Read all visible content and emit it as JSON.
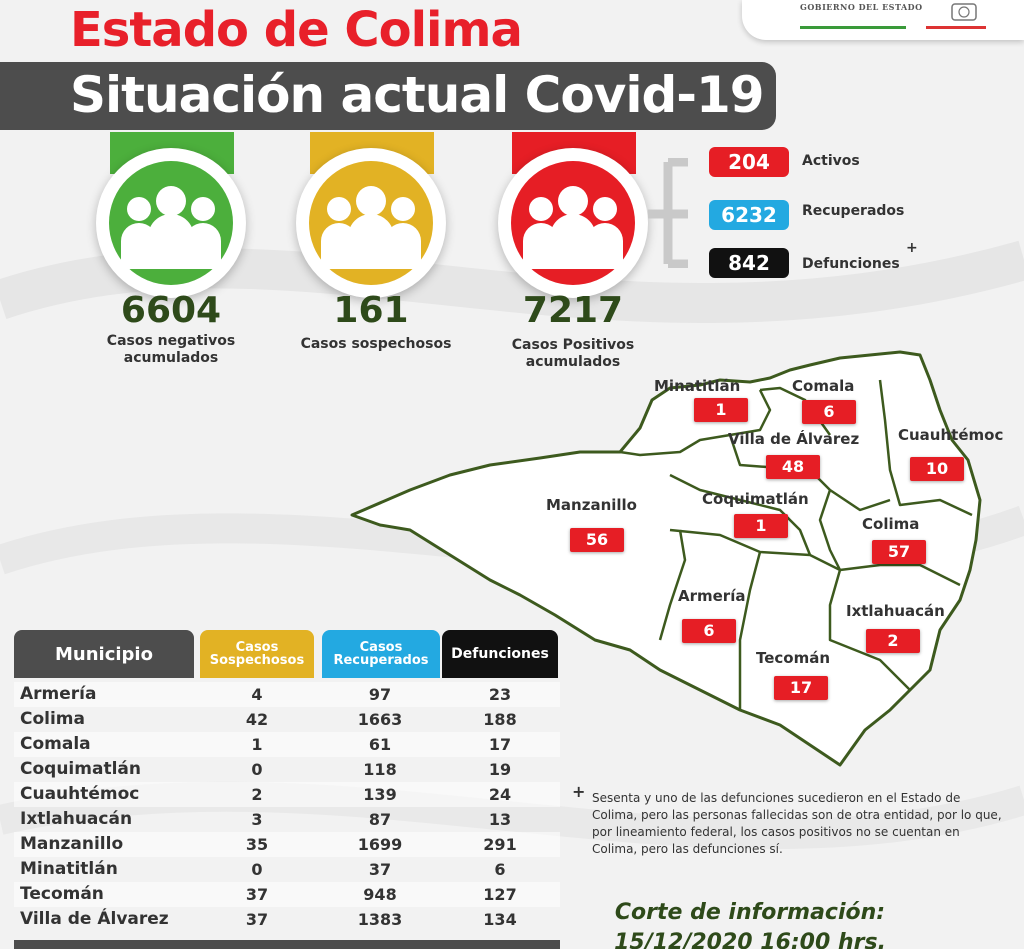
{
  "header": {
    "gov_text": "GOBIERNO DEL ESTADO",
    "title": "Estado de Colima",
    "subtitle": "Situación actual Covid-19"
  },
  "stats": [
    {
      "value": "6604",
      "label": "Casos negativos acumulados",
      "color": "#4caf3c"
    },
    {
      "value": "161",
      "label": "Casos sospechosos",
      "color": "#e2b224"
    },
    {
      "value": "7217",
      "label": "Casos Positivos acumulados",
      "color": "#e61e25"
    }
  ],
  "positivos_breakdown": [
    {
      "value": "204",
      "label": "Activos",
      "color": "#e61e25"
    },
    {
      "value": "6232",
      "label": "Recuperados",
      "color": "#23a9e1"
    },
    {
      "value": "842",
      "label": "Defunciones",
      "color": "#111111",
      "mark": "+"
    }
  ],
  "map": {
    "municipios": [
      {
        "name": "Minatitlán",
        "value": "1"
      },
      {
        "name": "Comala",
        "value": "6"
      },
      {
        "name": "Villa de Álvarez",
        "value": "48"
      },
      {
        "name": "Cuauhtémoc",
        "value": "10"
      },
      {
        "name": "Manzanillo",
        "value": "56"
      },
      {
        "name": "Coquimatlán",
        "value": "1"
      },
      {
        "name": "Colima",
        "value": "57"
      },
      {
        "name": "Armería",
        "value": "6"
      },
      {
        "name": "Ixtlahuacán",
        "value": "2"
      },
      {
        "name": "Tecomán",
        "value": "17"
      }
    ]
  },
  "table": {
    "headers": {
      "municipio": "Municipio",
      "sospechosos": "Casos Sospechosos",
      "recuperados": "Casos Recuperados",
      "defunciones": "Defunciones"
    },
    "header_colors": {
      "municipio": "#4d4d4d",
      "sospechosos": "#e2b224",
      "recuperados": "#23a9e1",
      "defunciones": "#111111"
    },
    "rows": [
      [
        "Armería",
        "4",
        "97",
        "23"
      ],
      [
        "Colima",
        "42",
        "1663",
        "188"
      ],
      [
        "Comala",
        "1",
        "61",
        "17"
      ],
      [
        "Coquimatlán",
        "0",
        "118",
        "19"
      ],
      [
        "Cuauhtémoc",
        "2",
        "139",
        "24"
      ],
      [
        "Ixtlahuacán",
        "3",
        "87",
        "13"
      ],
      [
        "Manzanillo",
        "35",
        "1699",
        "291"
      ],
      [
        "Minatitlán",
        "0",
        "37",
        "6"
      ],
      [
        "Tecomán",
        "37",
        "948",
        "127"
      ],
      [
        "Villa de Álvarez",
        "37",
        "1383",
        "134"
      ]
    ]
  },
  "footnote": {
    "mark": "+",
    "text": "Sesenta y uno de las defunciones sucedieron en el Estado de Colima, pero las personas fallecidas son de otra entidad, por lo que, por lineamiento federal, los casos positivos no se cuentan en Colima, pero las defunciones sí."
  },
  "corte": {
    "line1": "Corte de información:",
    "line2": "15/12/2020 16:00 hrs."
  }
}
